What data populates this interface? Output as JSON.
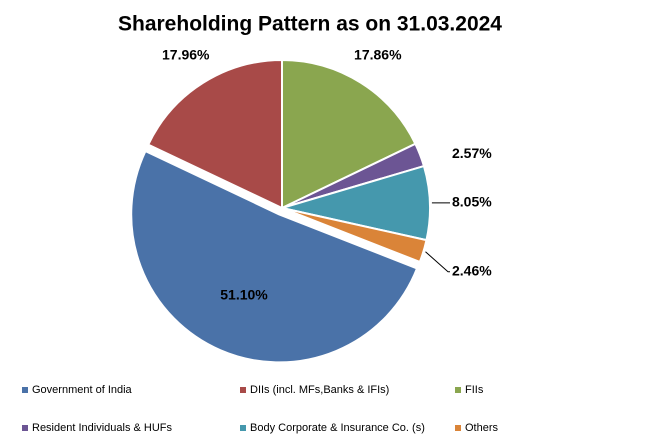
{
  "chart_data": {
    "type": "pie",
    "title": "Shareholding Pattern as on 31.03.2024",
    "categories": [
      "Government of India",
      "DIIs (incl. MFs,Banks & IFIs)",
      "FIIs",
      "Resident Individuals &  HUFs",
      "Body Corporate & Insurance Co. (s)",
      "Others"
    ],
    "values": [
      51.1,
      17.96,
      17.86,
      2.57,
      8.05,
      2.46
    ],
    "value_labels": [
      "51.10%",
      "17.96%",
      "17.86%",
      "2.57%",
      "8.05%",
      "2.46%"
    ],
    "colors": [
      "#4a72a8",
      "#a84a48",
      "#8aa64f",
      "#6c5594",
      "#4598ad",
      "#da8438"
    ],
    "legend": "bottom"
  }
}
